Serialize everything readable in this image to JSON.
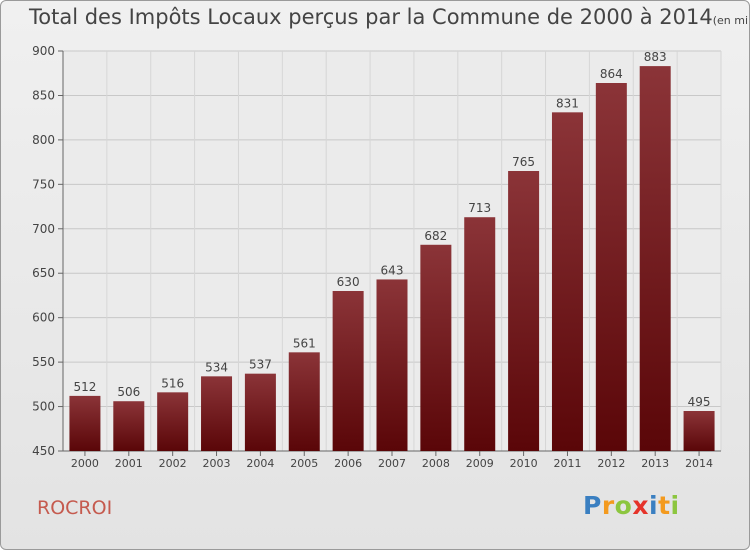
{
  "title": "Total des Impôts Locaux perçus par la Commune de 2000 à 2014",
  "unit": "(en milliers d'€)",
  "commune": "ROCROI",
  "logo": {
    "letters": [
      {
        "ch": "P",
        "color": "#3a7fc1"
      },
      {
        "ch": "r",
        "color": "#f39a1e"
      },
      {
        "ch": "o",
        "color": "#8cc63f"
      },
      {
        "ch": "x",
        "color": "#e5332a"
      },
      {
        "ch": "i",
        "color": "#3a7fc1"
      },
      {
        "ch": "t",
        "color": "#f39a1e"
      },
      {
        "ch": "i",
        "color": "#8cc63f"
      }
    ]
  },
  "chart_data": {
    "type": "bar",
    "categories": [
      "2000",
      "2001",
      "2002",
      "2003",
      "2004",
      "2005",
      "2006",
      "2007",
      "2008",
      "2009",
      "2010",
      "2011",
      "2012",
      "2013",
      "2014"
    ],
    "values": [
      512,
      506,
      516,
      534,
      537,
      561,
      630,
      643,
      682,
      713,
      765,
      831,
      864,
      883,
      495
    ],
    "ylim": [
      450,
      900
    ],
    "yticks": [
      450,
      500,
      550,
      600,
      650,
      700,
      750,
      800,
      850,
      900
    ],
    "grid": true,
    "bar_color_top": "#8b3438",
    "bar_color_bottom": "#5a0608"
  }
}
